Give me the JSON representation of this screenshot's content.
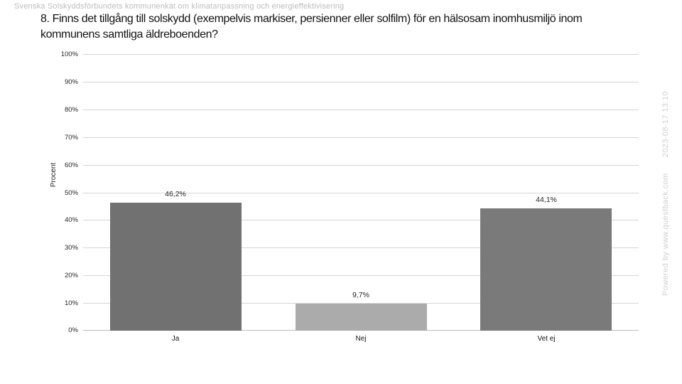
{
  "header": {
    "watermark": "Svenska Solskyddsförbundets kommunenkät om klimatanpassning och energieffektivisering"
  },
  "footer": {
    "powered_by": "Powered by www.questback.com",
    "timestamp": "2023-08-17 13:10"
  },
  "chart_data": {
    "type": "bar",
    "title": "8. Finns det tillgång till solskydd (exempelvis markiser, persienner eller solfilm) för en hälsosam inomhusmiljö inom kommunens samtliga äldreboenden?",
    "title_lines": [
      "8. Finns det tillgång till solskydd (exempelvis markiser, persienner eller solfilm) för en hälsosam inomhusmiljö inom",
      "kommunens samtliga äldreboenden?"
    ],
    "categories": [
      "Ja",
      "Nej",
      "Vet ej"
    ],
    "values": [
      46.2,
      9.7,
      44.1
    ],
    "value_labels": [
      "46,2%",
      "9,7%",
      "44,1%"
    ],
    "bar_colors": [
      "#717171",
      "#ababab",
      "#7a7a7a"
    ],
    "xlabel": "",
    "ylabel": "Procent",
    "ylim": [
      0,
      100
    ],
    "ytick_step": 10,
    "ytick_labels": [
      "0%",
      "10%",
      "20%",
      "30%",
      "40%",
      "50%",
      "60%",
      "70%",
      "80%",
      "90%",
      "100%"
    ],
    "grid": "horizontal",
    "legend": "none",
    "colors": {
      "gridline": "#d6d6d6",
      "axis_line": "#bdbdbd",
      "text": "#262626",
      "watermark": "#bcbcbc",
      "footer_watermark": "#d0d0d0"
    }
  }
}
